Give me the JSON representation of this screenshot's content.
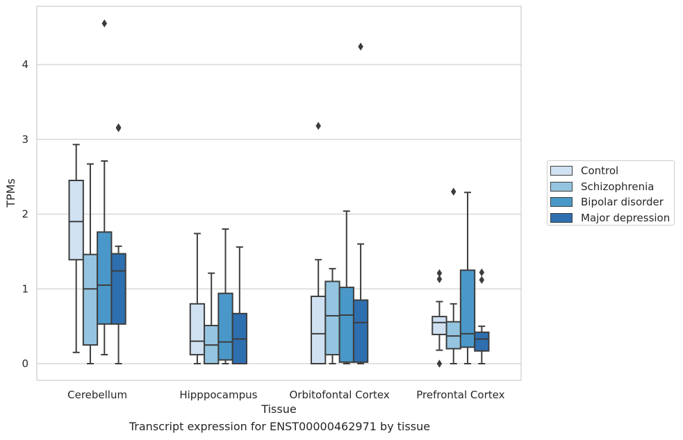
{
  "caption": "Transcript expression for ENST00000462971 by tissue",
  "chart_data": {
    "type": "box",
    "xlabel": "Tissue",
    "ylabel": "TPMs",
    "ylim": [
      -0.22,
      4.8
    ],
    "yticks": [
      0,
      1,
      2,
      3,
      4
    ],
    "grid": "horizontal",
    "legend_position": "right",
    "categories": [
      "Cerebellum",
      "Hipppocampus",
      "Orbitofontal Cortex",
      "Prefrontal Cortex"
    ],
    "series": [
      {
        "name": "Control",
        "color": "#d0e1f2",
        "boxes": [
          {
            "whisker_low": 0.15,
            "q1": 1.39,
            "median": 1.9,
            "q3": 2.45,
            "whisker_high": 2.93,
            "outliers": []
          },
          {
            "whisker_low": 0.0,
            "q1": 0.12,
            "median": 0.3,
            "q3": 0.8,
            "whisker_high": 1.74,
            "outliers": []
          },
          {
            "whisker_low": 0.0,
            "q1": 0.0,
            "median": 0.4,
            "q3": 0.9,
            "whisker_high": 1.39,
            "outliers": [
              3.18
            ]
          },
          {
            "whisker_low": 0.18,
            "q1": 0.39,
            "median": 0.55,
            "q3": 0.63,
            "whisker_high": 0.83,
            "outliers": [
              0.0,
              1.13,
              1.21
            ]
          }
        ]
      },
      {
        "name": "Schizophrenia",
        "color": "#94c4df",
        "boxes": [
          {
            "whisker_low": 0.0,
            "q1": 0.25,
            "median": 1.0,
            "q3": 1.46,
            "whisker_high": 2.67,
            "outliers": []
          },
          {
            "whisker_low": 0.0,
            "q1": 0.0,
            "median": 0.25,
            "q3": 0.51,
            "whisker_high": 1.21,
            "outliers": []
          },
          {
            "whisker_low": 0.0,
            "q1": 0.12,
            "median": 0.64,
            "q3": 1.1,
            "whisker_high": 1.27,
            "outliers": []
          },
          {
            "whisker_low": 0.0,
            "q1": 0.2,
            "median": 0.37,
            "q3": 0.56,
            "whisker_high": 0.8,
            "outliers": [
              2.3
            ]
          }
        ]
      },
      {
        "name": "Bipolar disorder",
        "color": "#4a98c9",
        "boxes": [
          {
            "whisker_low": 0.12,
            "q1": 0.53,
            "median": 1.05,
            "q3": 1.76,
            "whisker_high": 2.71,
            "outliers": [
              4.55
            ]
          },
          {
            "whisker_low": 0.0,
            "q1": 0.05,
            "median": 0.29,
            "q3": 0.94,
            "whisker_high": 1.8,
            "outliers": []
          },
          {
            "whisker_low": 0.0,
            "q1": 0.02,
            "median": 0.65,
            "q3": 1.02,
            "whisker_high": 2.04,
            "outliers": []
          },
          {
            "whisker_low": 0.0,
            "q1": 0.22,
            "median": 0.4,
            "q3": 1.25,
            "whisker_high": 2.29,
            "outliers": []
          }
        ]
      },
      {
        "name": "Major depression",
        "color": "#2e6fb0",
        "boxes": [
          {
            "whisker_low": 0.0,
            "q1": 0.53,
            "median": 1.24,
            "q3": 1.47,
            "whisker_high": 1.57,
            "outliers": [
              3.15,
              3.16
            ]
          },
          {
            "whisker_low": 0.0,
            "q1": 0.0,
            "median": 0.33,
            "q3": 0.67,
            "whisker_high": 1.56,
            "outliers": []
          },
          {
            "whisker_low": 0.0,
            "q1": 0.02,
            "median": 0.55,
            "q3": 0.85,
            "whisker_high": 1.6,
            "outliers": [
              4.24
            ]
          },
          {
            "whisker_low": 0.0,
            "q1": 0.17,
            "median": 0.33,
            "q3": 0.42,
            "whisker_high": 0.5,
            "outliers": [
              1.12,
              1.22
            ]
          }
        ]
      }
    ]
  }
}
